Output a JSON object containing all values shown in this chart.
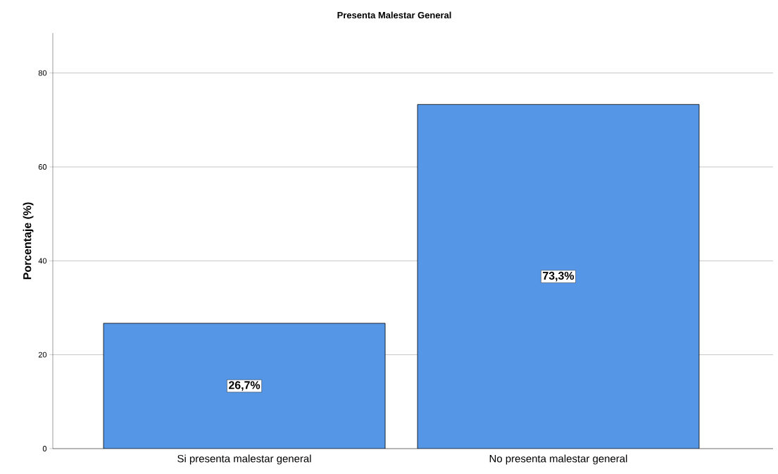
{
  "chart_data": {
    "type": "bar",
    "title": "Presenta Malestar General",
    "ylabel": "Porcentaje (%)",
    "categories": [
      "Si presenta malestar general",
      "No presenta malestar general"
    ],
    "values": [
      26.7,
      73.3
    ],
    "value_labels": [
      "26,7%",
      "73,3%"
    ],
    "color": "#5596e6",
    "ylim": [
      0,
      88.5
    ],
    "yticks": [
      0,
      20,
      40,
      60,
      80
    ],
    "grid": "y"
  }
}
